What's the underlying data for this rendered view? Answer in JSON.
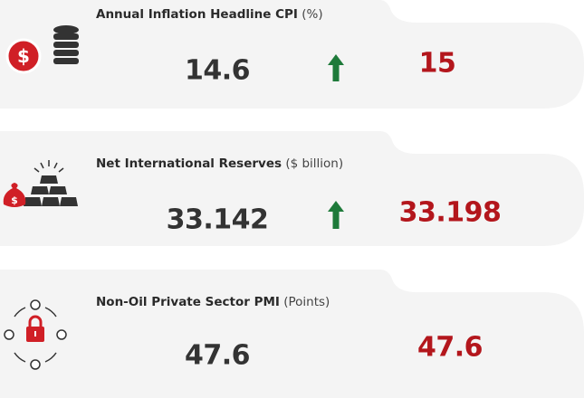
{
  "cards": [
    {
      "title": "Annual Inflation Headline CPI",
      "unit": "(%)",
      "previous": "14.6",
      "current": "15"
    },
    {
      "title": "Net International Reserves",
      "unit": "($ billion)",
      "previous": "33.142",
      "current": "33.198"
    },
    {
      "title": "Non-Oil Private Sector PMI",
      "unit": "(Points)",
      "previous": "47.6",
      "current": "47.6"
    }
  ]
}
